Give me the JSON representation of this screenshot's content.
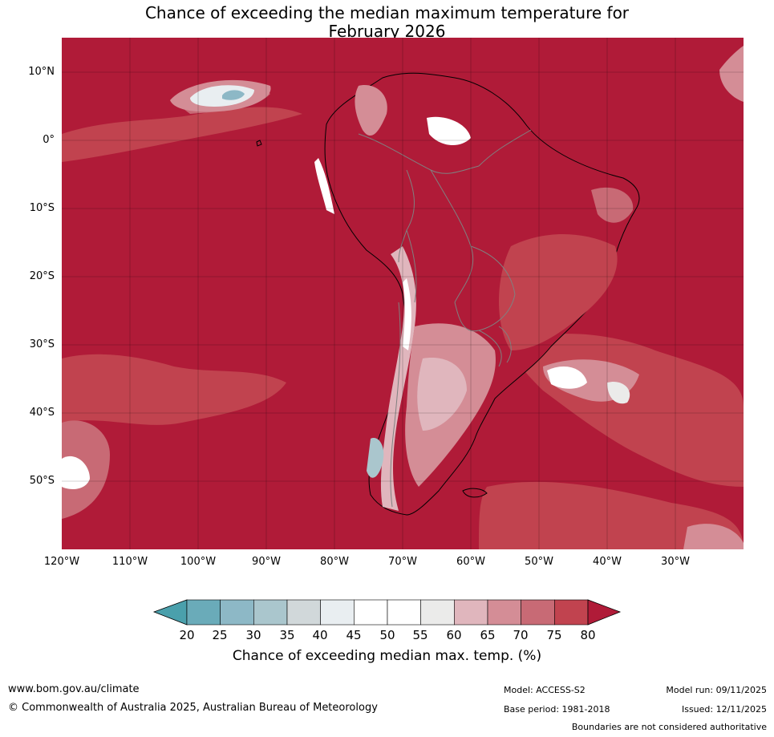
{
  "title": {
    "line1": "Chance of exceeding the median maximum temperature for",
    "line2": "February 2026"
  },
  "axes": {
    "lat_labels": [
      "10°N",
      "0°",
      "10°S",
      "20°S",
      "30°S",
      "40°S",
      "50°S"
    ],
    "lat_values": [
      10,
      0,
      -10,
      -20,
      -30,
      -40,
      -50
    ],
    "lon_labels": [
      "120°W",
      "110°W",
      "100°W",
      "90°W",
      "80°W",
      "70°W",
      "60°W",
      "50°W",
      "40°W",
      "30°W"
    ],
    "lon_values": [
      -120,
      -110,
      -100,
      -90,
      -80,
      -70,
      -60,
      -50,
      -40,
      -30
    ],
    "lat_range": [
      -60,
      15
    ],
    "lon_range": [
      -120,
      -20
    ],
    "grid": true
  },
  "colorbar": {
    "ticks": [
      "20",
      "25",
      "30",
      "35",
      "40",
      "45",
      "50",
      "55",
      "60",
      "65",
      "70",
      "75",
      "80"
    ],
    "colors": [
      "#6aabb9",
      "#8db8c6",
      "#aac6cd",
      "#d1d8da",
      "#e9eef1",
      "#ffffff",
      "#ffffff",
      "#ebebea",
      "#e0b6bd",
      "#d48d96",
      "#c86a75",
      "#c1434f"
    ],
    "under_color": "#4aa0ac",
    "over_color": "#b01b38",
    "label": "Chance of exceeding median max. temp. (%)"
  },
  "colors": {
    "dominant": "#b01b38",
    "land_outline": "#000000",
    "border_line": "#808080"
  },
  "footer": {
    "site": "www.bom.gov.au/climate",
    "copyright": "© Commonwealth of Australia 2025, Australian Bureau of Meteorology",
    "model": "Model: ACCESS-S2",
    "base_period": "Base period: 1981-2018",
    "model_run": "Model run: 09/11/2025",
    "issued": "Issued: 12/11/2025",
    "disclaimer": "Boundaries are not considered authoritative"
  }
}
